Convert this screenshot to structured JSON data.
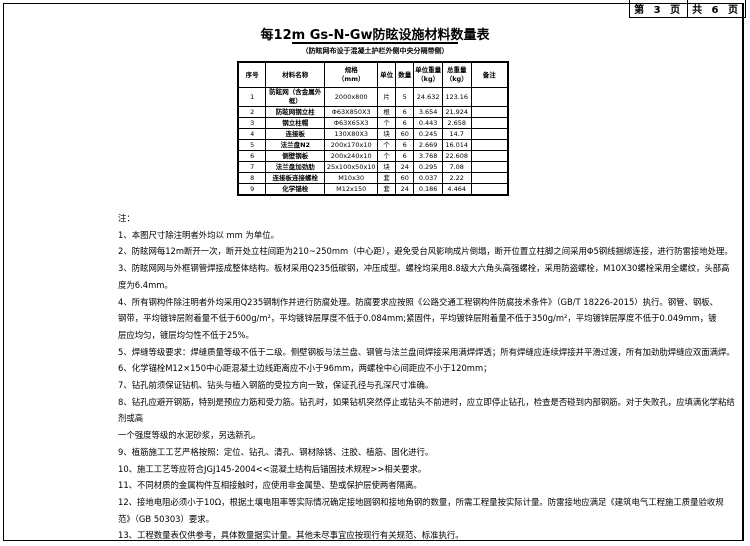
{
  "page_number": {
    "current": "第 3 页",
    "total": "共 6 页"
  },
  "title": "每12m Gs-N-Gw防眩设施材料数量表",
  "subtitle": "（防眩网布设于混凝土护栏外侧中央分隔带侧）",
  "table": {
    "headers": [
      "序号",
      "材料名称",
      "规格\n（mm）",
      "单位",
      "数量",
      "单位重量\n（kg）",
      "总重量\n（kg）",
      "备注"
    ],
    "rows": [
      [
        "1",
        "防眩网（含金属外框）",
        "2000x800",
        "片",
        "5",
        "24.632",
        "123.16",
        ""
      ],
      [
        "2",
        "防眩网钢立柱",
        "Φ63X850X3",
        "根",
        "6",
        "3.654",
        "21.924",
        ""
      ],
      [
        "3",
        "钢立柱帽",
        "Φ63X65X3",
        "个",
        "6",
        "0.443",
        "2.658",
        ""
      ],
      [
        "4",
        "连接板",
        "130X80X3",
        "块",
        "60",
        "0.245",
        "14.7",
        ""
      ],
      [
        "5",
        "法兰盘N2",
        "200x170x10",
        "个",
        "6",
        "2.669",
        "16.014",
        ""
      ],
      [
        "6",
        "侧壁钢板",
        "200x240x10",
        "个",
        "6",
        "3.768",
        "22.608",
        ""
      ],
      [
        "7",
        "法兰盘加劲肋",
        "25x100x50x10",
        "块",
        "24",
        "0.295",
        "7.08",
        ""
      ],
      [
        "8",
        "连接板连接螺栓",
        "M10x30",
        "套",
        "60",
        "0.037",
        "2.22",
        ""
      ],
      [
        "9",
        "化学锚栓",
        "M12x150",
        "套",
        "24",
        "0.186",
        "4.464",
        ""
      ]
    ]
  },
  "notes": {
    "heading": "注：",
    "lines": [
      "1、本图尺寸除注明者外均以 mm 为单位。",
      "2、防眩网每12m断开一次，断开处立柱间距为210~250mm（中心距），避免受台风影响成片倒塌，断开位置立柱脚之间采用Φ5钢线捆绑连接，进行防雷接地处理。",
      "3、防眩网网与外框钢管焊接成整体结构。板材采用Q235低碳钢，冲压成型。螺栓均采用8.8级大六角头高强螺栓，采用防盗螺栓，M10X30螺栓采用全螺纹，头部高",
      "度为6.4mm。",
      "4、所有钢构件除注明者外均采用Q235钢制作并进行防腐处理。防腐要求应按照《公路交通工程钢构件防腐技术条件》（GB/T 18226-2015）执行。钢管、钢板、",
      "钢带，平均镀锌层附着量不低于600g/m²，平均镀锌层厚度不低于0.084mm;紧固件，平均镀锌层附着量不低于350g/m²，平均镀锌层厚度不低于0.049mm，镀",
      "层应均匀，镀层均匀性不低于25%。",
      "5、焊缝等级要求：焊缝质量等级不低于二级。侧壁钢板与法兰盘、钢管与法兰盘间焊接采用满焊焊透；所有焊缝应连续焊接并平滑过渡，所有加劲肋焊缝应双面满焊。",
      "6、化学锚栓M12×150中心距混凝土边线距离应不小于96mm，两螺栓中心间距应不小于120mm；",
      "7、钻孔前须保证钻机、钻头与植入钢筋的受拉方向一致，保证孔径与孔深尺寸准确。",
      "8、钻孔应避开钢筋，特别是预应力筋和受力筋。钻孔时，如果钻机突然停止或钻头不前进时，应立即停止钻孔，检查是否碰到内部钢筋。对于失败孔，应填满化学粘结剂或高",
      "一个强度等级的水泥砂浆，另选新孔。",
      "9、植筋施工工艺严格按照：定位、钻孔、清孔、钢材除锈、注胶、植筋、固化进行。",
      "10、施工工艺等应符合JGJ145-2004<<混凝土结构后锚固技术规程>>相关要求。",
      "11、不同材质的金属构件互相接触时，应使用非金属垫、垫或保护层使两者隔离。",
      "12、接地电阻必须小于10Ω，根据土壤电阻率等实际情况确定接地圆钢和接地角钢的数量，所需工程量按实际计量。防雷接地应满足《建筑电气工程施工质量验收规",
      "范》（GB 50303）要求。",
      "13、工程数量表仅供参考，具体数量据实计量。其他未尽事宜应按现行有关规范、标准执行。"
    ]
  }
}
